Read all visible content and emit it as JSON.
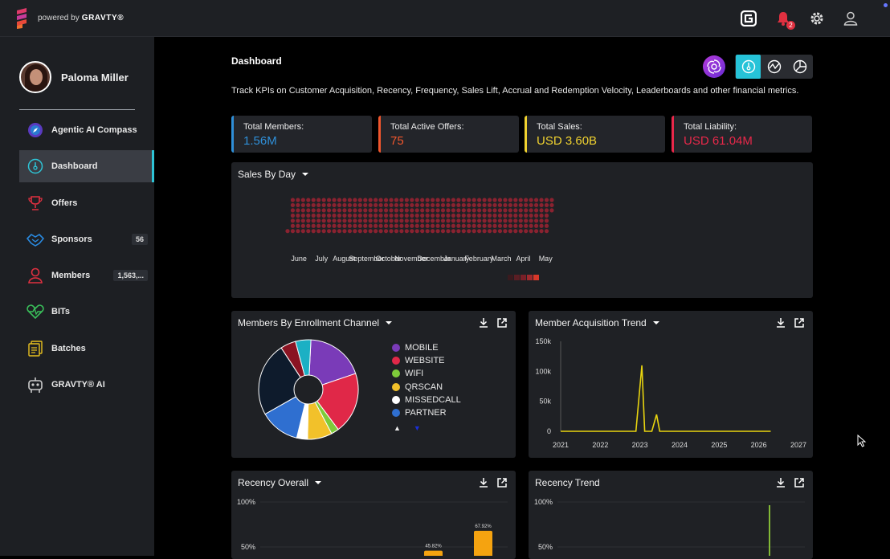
{
  "app": {
    "powered_by": "powered by",
    "brand": "GRAVTY®",
    "notification_count": "2",
    "accent_color": "#26c3d8"
  },
  "user": {
    "name": "Paloma Miller"
  },
  "sidebar": {
    "items": [
      {
        "label": "Agentic AI Compass",
        "icon": "compass-icon",
        "count": ""
      },
      {
        "label": "Dashboard",
        "icon": "dashboard-icon",
        "count": "",
        "active": true
      },
      {
        "label": "Offers",
        "icon": "trophy-icon",
        "count": ""
      },
      {
        "label": "Sponsors",
        "icon": "handshake-icon",
        "count": "56"
      },
      {
        "label": "Members",
        "icon": "member-icon",
        "count": "1,563,..."
      },
      {
        "label": "BITs",
        "icon": "heartbeat-icon",
        "count": ""
      },
      {
        "label": "Batches",
        "icon": "batches-icon",
        "count": ""
      },
      {
        "label": "GRAVTY® AI",
        "icon": "robot-icon",
        "count": ""
      }
    ]
  },
  "dashboard": {
    "title": "Dashboard",
    "description": "Track KPIs on Customer Acquisition, Recency, Frequency, Sales Lift, Accrual and Redemption Velocity, Leaderboards and other financial metrics.",
    "kpis": [
      {
        "label": "Total Members:",
        "value": "1.56M",
        "color": "#2f8fd8"
      },
      {
        "label": "Total Active Offers:",
        "value": "75",
        "color": "#f0562d"
      },
      {
        "label": "Total Sales:",
        "value": "USD 3.60B",
        "color": "#f0d230"
      },
      {
        "label": "Total Liability:",
        "value": "USD 61.04M",
        "color": "#e8284a"
      }
    ]
  },
  "panels": {
    "sales_by_day": {
      "title": "Sales By Day"
    },
    "enrollment": {
      "title": "Members By Enrollment Channel"
    },
    "acquisition": {
      "title": "Member Acquisition Trend"
    },
    "recency_overall": {
      "title": "Recency Overall"
    },
    "recency_trend": {
      "title": "Recency Trend"
    }
  },
  "chart_data": [
    {
      "type": "heatmap",
      "title": "Sales By Day",
      "categories": [
        "June",
        "July",
        "August",
        "September",
        "October",
        "November",
        "December",
        "January",
        "February",
        "March",
        "April",
        "May"
      ],
      "rows": 7,
      "cell_color": "#8a2230"
    },
    {
      "type": "pie",
      "title": "Members By Enrollment Channel",
      "donut": true,
      "slices": [
        {
          "name": "MOBILE",
          "value": 19,
          "color": "#7a3bb8"
        },
        {
          "name": "WEBSITE",
          "value": 20,
          "color": "#e02848"
        },
        {
          "name": "WIFI",
          "value": 2.5,
          "color": "#7ecb3a"
        },
        {
          "name": "QRSCAN",
          "value": 8,
          "color": "#f2c12a"
        },
        {
          "name": "MISSEDCALL",
          "value": 3.5,
          "color": "#ffffff"
        },
        {
          "name": "PARTNER",
          "value": 13,
          "color": "#2f6fd0"
        },
        {
          "name": "",
          "value": 24,
          "color": "#0e1b2c"
        },
        {
          "name": "",
          "value": 5,
          "color": "#8a1322"
        },
        {
          "name": "",
          "value": 5,
          "color": "#1bb0c4"
        }
      ],
      "legend": [
        "MOBILE",
        "WEBSITE",
        "WIFI",
        "QRSCAN",
        "MISSEDCALL",
        "PARTNER"
      ]
    },
    {
      "type": "line",
      "title": "Member Acquisition Trend",
      "x_ticks": [
        "2021",
        "2022",
        "2023",
        "2024",
        "2025",
        "2026",
        "2027"
      ],
      "y_ticks": [
        "0",
        "50k",
        "100k",
        "150k"
      ],
      "ylim": [
        0,
        150000
      ],
      "xlim": [
        2021,
        2027
      ],
      "series": [
        {
          "color": "#e8d40f",
          "points": [
            [
              2021.0,
              0
            ],
            [
              2022.9,
              0
            ],
            [
              2023.05,
              110000
            ],
            [
              2023.12,
              0
            ],
            [
              2023.3,
              0
            ],
            [
              2023.42,
              28000
            ],
            [
              2023.5,
              0
            ],
            [
              2026.3,
              0
            ]
          ]
        }
      ]
    },
    {
      "type": "bar",
      "title": "Recency Overall",
      "y_ticks": [
        "100%",
        "50%"
      ],
      "ylim": [
        0,
        100
      ],
      "values": [
        45.82,
        67.92
      ],
      "labels": [
        "45.82%",
        "67.92%"
      ],
      "color": "#f5a310"
    },
    {
      "type": "line",
      "title": "Recency Trend",
      "y_ticks": [
        "100%",
        "50%"
      ],
      "ylim": [
        0,
        100
      ],
      "series": [
        {
          "color": "#9be03a"
        }
      ]
    }
  ]
}
